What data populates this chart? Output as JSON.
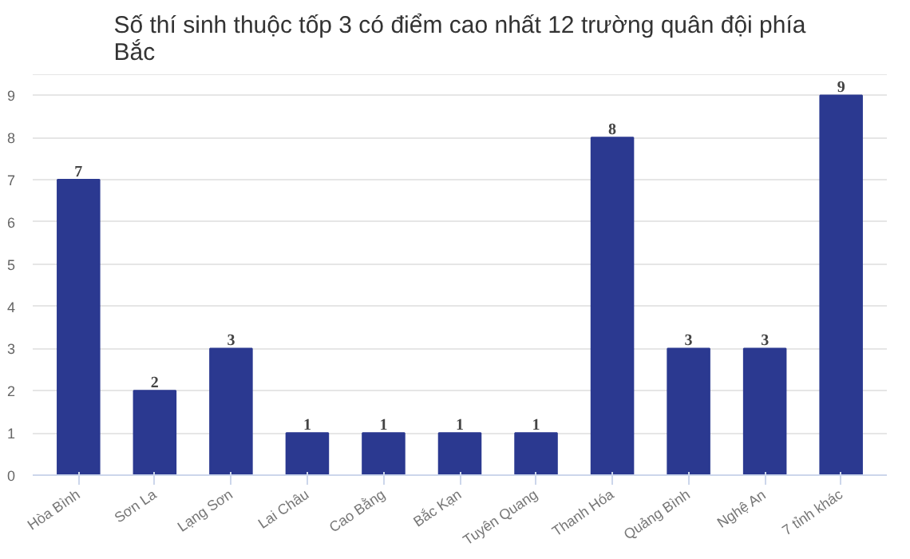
{
  "chart_data": {
    "type": "bar",
    "title": "Số thí sinh thuộc tốp 3 có điểm cao nhất 12 trường quân đội phía Bắc",
    "categories": [
      "Hòa Bình",
      "Sơn La",
      "Lạng Sơn",
      "Lai Châu",
      "Cao Bằng",
      "Bắc Kạn",
      "Tuyên Quang",
      "Thanh Hóa",
      "Quảng Bình",
      "Nghệ An",
      "7 tỉnh khác"
    ],
    "values": [
      7,
      2,
      3,
      1,
      1,
      1,
      1,
      8,
      3,
      3,
      9
    ],
    "color": "#2b3990",
    "ylim": [
      0,
      9.5
    ],
    "yticks": [
      0,
      1,
      2,
      3,
      4,
      5,
      6,
      7,
      8,
      9
    ],
    "grid": "y",
    "data_labels": true
  }
}
